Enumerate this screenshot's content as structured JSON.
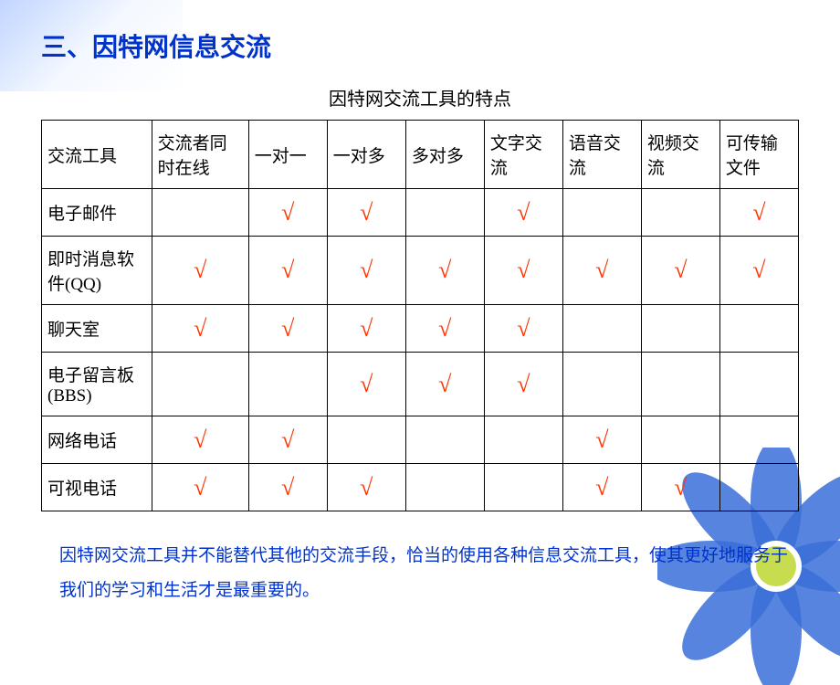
{
  "section_title": "三、因特网信息交流",
  "table_caption": "因特网交流工具的特点",
  "checkmark_glyph": "√",
  "checkmark_color": "#ff3300",
  "title_color": "#0033cc",
  "footer_color": "#0033cc",
  "border_color": "#000000",
  "columns": [
    "交流工具",
    "交流者同时在线",
    "一对一",
    "一对多",
    "多对多",
    "文字交流",
    "语音交流",
    "视频交流",
    "可传输文件"
  ],
  "rows": [
    {
      "label": "电子邮件",
      "checks": [
        false,
        true,
        true,
        false,
        true,
        false,
        false,
        true
      ]
    },
    {
      "label": "即时消息软件(QQ)",
      "checks": [
        true,
        true,
        true,
        true,
        true,
        true,
        true,
        true
      ]
    },
    {
      "label": "聊天室",
      "checks": [
        true,
        true,
        true,
        true,
        true,
        false,
        false,
        false
      ]
    },
    {
      "label": "电子留言板(BBS)",
      "checks": [
        false,
        false,
        true,
        true,
        true,
        false,
        false,
        false
      ]
    },
    {
      "label": "网络电话",
      "checks": [
        true,
        true,
        false,
        false,
        false,
        true,
        false,
        false
      ]
    },
    {
      "label": "可视电话",
      "checks": [
        true,
        true,
        true,
        false,
        false,
        true,
        true,
        false
      ]
    }
  ],
  "footer_note": "因特网交流工具并不能替代其他的交流手段，恰当的使用各种信息交流工具，使其更好地服务于我们的学习和生活才是最重要的。"
}
